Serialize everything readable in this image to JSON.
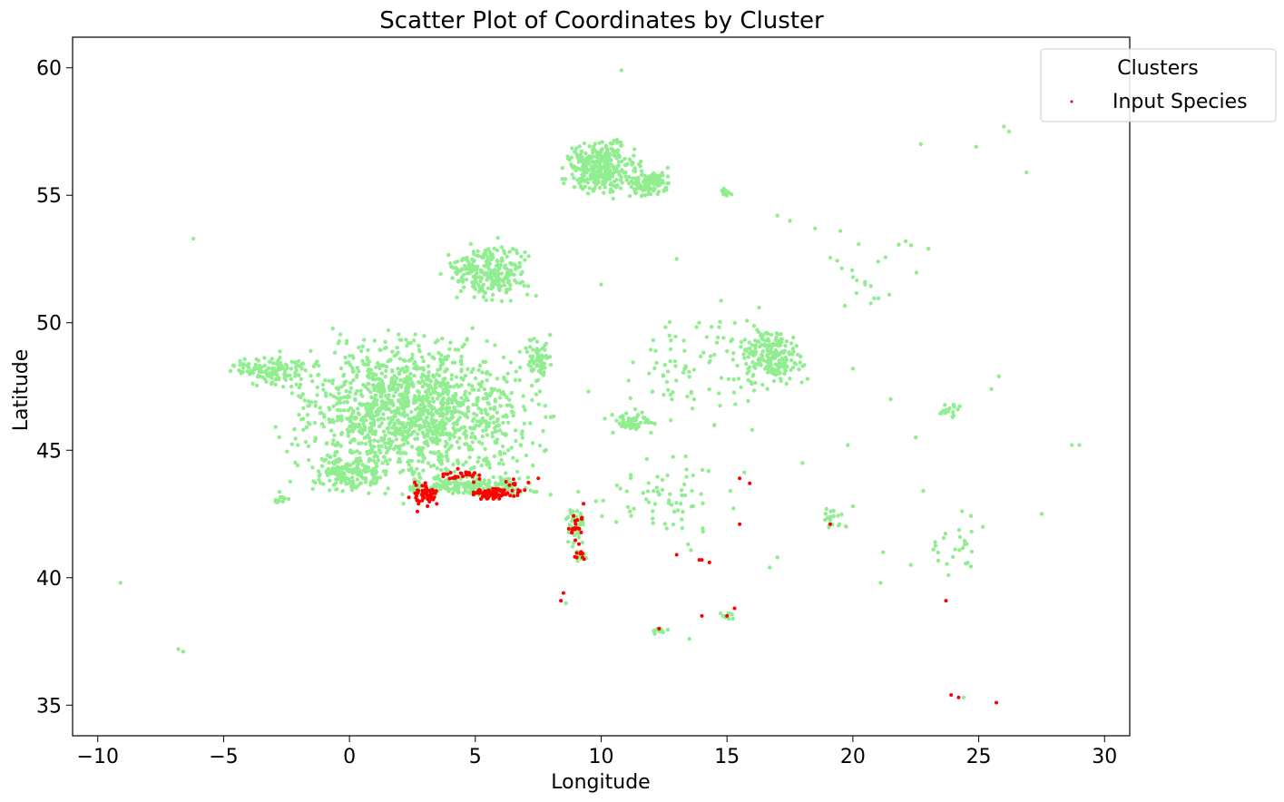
{
  "chart_data": {
    "type": "scatter",
    "title": "Scatter Plot of Coordinates by Cluster",
    "xlabel": "Longitude",
    "ylabel": "Latitude",
    "xlim": [
      -11,
      31
    ],
    "ylim": [
      33.8,
      61.2
    ],
    "xticks": [
      -10,
      -5,
      0,
      5,
      10,
      15,
      20,
      25,
      30
    ],
    "xtick_labels": [
      "−10",
      "−5",
      "0",
      "5",
      "10",
      "15",
      "20",
      "25",
      "30"
    ],
    "yticks": [
      35,
      40,
      45,
      50,
      55,
      60
    ],
    "ytick_labels": [
      "35",
      "40",
      "45",
      "50",
      "55",
      "60"
    ],
    "grid": false,
    "legend": {
      "title": "Clusters",
      "placement": "top-right",
      "entries": [
        "Input Species"
      ]
    },
    "colors": {
      "background_points": "#90ee90",
      "input_species": "#ff0000"
    },
    "series": [
      {
        "role": "background",
        "color": "#90ee90",
        "regions": [
          {
            "lon": 2.5,
            "lat": 46.5,
            "spread_lon": 3.8,
            "spread_lat": 2.3,
            "n": 1400
          },
          {
            "lon": -3.0,
            "lat": 48.1,
            "spread_lon": 1.3,
            "spread_lat": 0.45,
            "n": 120
          },
          {
            "lon": 0.0,
            "lat": 44.1,
            "spread_lon": 1.2,
            "spread_lat": 0.6,
            "n": 150
          },
          {
            "lon": 4.8,
            "lat": 43.6,
            "spread_lon": 2.2,
            "spread_lat": 0.35,
            "n": 200
          },
          {
            "lon": 5.5,
            "lat": 52.0,
            "spread_lon": 1.3,
            "spread_lat": 0.9,
            "n": 260
          },
          {
            "lon": 7.5,
            "lat": 48.6,
            "spread_lon": 0.4,
            "spread_lat": 0.7,
            "n": 60
          },
          {
            "lon": 10.0,
            "lat": 56.1,
            "spread_lon": 1.1,
            "spread_lat": 0.9,
            "n": 320
          },
          {
            "lon": 11.9,
            "lat": 55.5,
            "spread_lon": 0.8,
            "spread_lat": 0.45,
            "n": 120
          },
          {
            "lon": 15.0,
            "lat": 55.1,
            "spread_lon": 0.2,
            "spread_lat": 0.12,
            "n": 15
          },
          {
            "lon": 16.8,
            "lat": 48.7,
            "spread_lon": 1.0,
            "spread_lat": 0.9,
            "n": 200
          },
          {
            "lon": 14.0,
            "lat": 48.5,
            "spread_lon": 2.5,
            "spread_lat": 2.0,
            "n": 90
          },
          {
            "lon": 11.2,
            "lat": 46.1,
            "spread_lon": 0.7,
            "spread_lat": 0.35,
            "n": 60
          },
          {
            "lon": 9.0,
            "lat": 42.0,
            "spread_lon": 0.35,
            "spread_lat": 0.6,
            "n": 50
          },
          {
            "lon": 9.2,
            "lat": 40.9,
            "spread_lon": 0.25,
            "spread_lat": 0.2,
            "n": 15
          },
          {
            "lon": 12.5,
            "lat": 43.0,
            "spread_lon": 2.5,
            "spread_lat": 1.3,
            "n": 70
          },
          {
            "lon": 19.2,
            "lat": 42.4,
            "spread_lon": 0.4,
            "spread_lat": 0.4,
            "n": 20
          },
          {
            "lon": 23.9,
            "lat": 46.6,
            "spread_lon": 0.5,
            "spread_lat": 0.3,
            "n": 20
          },
          {
            "lon": 24.0,
            "lat": 41.4,
            "spread_lon": 1.0,
            "spread_lat": 1.0,
            "n": 25
          },
          {
            "lon": 20.5,
            "lat": 51.8,
            "spread_lon": 2.0,
            "spread_lat": 1.5,
            "n": 20
          },
          {
            "lon": -2.8,
            "lat": 43.1,
            "spread_lon": 0.3,
            "spread_lat": 0.2,
            "n": 12
          },
          {
            "lon": 12.3,
            "lat": 37.9,
            "spread_lon": 0.4,
            "spread_lat": 0.15,
            "n": 12
          },
          {
            "lon": 15.0,
            "lat": 38.5,
            "spread_lon": 0.3,
            "spread_lat": 0.15,
            "n": 8
          }
        ],
        "points": [
          {
            "lon": 10.8,
            "lat": 59.9
          },
          {
            "lon": -6.2,
            "lat": 53.3
          },
          {
            "lon": -9.1,
            "lat": 39.8
          },
          {
            "lon": -6.8,
            "lat": 37.2
          },
          {
            "lon": -6.6,
            "lat": 37.1
          },
          {
            "lon": 26.0,
            "lat": 57.7
          },
          {
            "lon": 26.2,
            "lat": 57.5
          },
          {
            "lon": 24.9,
            "lat": 56.9
          },
          {
            "lon": 22.7,
            "lat": 57.0
          },
          {
            "lon": 26.9,
            "lat": 55.9
          },
          {
            "lon": 17.0,
            "lat": 54.2
          },
          {
            "lon": 17.5,
            "lat": 54.0
          },
          {
            "lon": 18.5,
            "lat": 53.7
          },
          {
            "lon": 19.5,
            "lat": 53.6
          },
          {
            "lon": 22.1,
            "lat": 53.2
          },
          {
            "lon": 23.0,
            "lat": 52.9
          },
          {
            "lon": 13.0,
            "lat": 52.5
          },
          {
            "lon": 10.0,
            "lat": 51.5
          },
          {
            "lon": 21.0,
            "lat": 52.4
          },
          {
            "lon": 25.8,
            "lat": 47.9
          },
          {
            "lon": 25.5,
            "lat": 47.4
          },
          {
            "lon": 28.7,
            "lat": 45.2
          },
          {
            "lon": 29.0,
            "lat": 45.2
          },
          {
            "lon": 27.5,
            "lat": 42.5
          },
          {
            "lon": 20.0,
            "lat": 42.8
          },
          {
            "lon": 21.1,
            "lat": 39.8
          },
          {
            "lon": 21.2,
            "lat": 41.0
          },
          {
            "lon": 22.3,
            "lat": 40.5
          },
          {
            "lon": 23.8,
            "lat": 40.1
          },
          {
            "lon": 24.4,
            "lat": 35.3
          },
          {
            "lon": 13.5,
            "lat": 37.6
          },
          {
            "lon": 8.6,
            "lat": 39.0
          },
          {
            "lon": 17.0,
            "lat": 40.8
          },
          {
            "lon": 16.7,
            "lat": 40.4
          },
          {
            "lon": 18.0,
            "lat": 44.5
          },
          {
            "lon": 19.8,
            "lat": 45.2
          },
          {
            "lon": 16.0,
            "lat": 45.8
          },
          {
            "lon": 14.5,
            "lat": 46.0
          },
          {
            "lon": 22.5,
            "lat": 45.5
          },
          {
            "lon": 21.5,
            "lat": 47.0
          },
          {
            "lon": 20.0,
            "lat": 48.2
          },
          {
            "lon": 18.2,
            "lat": 47.8
          },
          {
            "lon": 22.8,
            "lat": 43.4
          },
          {
            "lon": 8.0,
            "lat": 46.3
          },
          {
            "lon": 7.8,
            "lat": 46.3
          },
          {
            "lon": 9.5,
            "lat": 47.3
          },
          {
            "lon": 6.5,
            "lat": 44.7
          },
          {
            "lon": 6.8,
            "lat": 45.2
          }
        ]
      },
      {
        "role": "species",
        "name": "Input Species",
        "color": "#ff0000",
        "regions": [
          {
            "lon": 3.0,
            "lat": 43.3,
            "spread_lon": 0.45,
            "spread_lat": 0.35,
            "n": 60
          },
          {
            "lon": 5.6,
            "lat": 43.3,
            "spread_lon": 0.6,
            "spread_lat": 0.2,
            "n": 70
          },
          {
            "lon": 4.5,
            "lat": 44.0,
            "spread_lon": 0.8,
            "spread_lat": 0.25,
            "n": 25
          },
          {
            "lon": 6.6,
            "lat": 43.5,
            "spread_lon": 0.6,
            "spread_lat": 0.35,
            "n": 20
          },
          {
            "lon": 9.0,
            "lat": 42.0,
            "spread_lon": 0.3,
            "spread_lat": 0.5,
            "n": 20
          },
          {
            "lon": 9.2,
            "lat": 40.9,
            "spread_lon": 0.2,
            "spread_lat": 0.15,
            "n": 8
          }
        ],
        "points": [
          {
            "lon": 7.5,
            "lat": 43.9
          },
          {
            "lon": 2.7,
            "lat": 42.6
          },
          {
            "lon": 9.3,
            "lat": 42.9
          },
          {
            "lon": 8.5,
            "lat": 39.4
          },
          {
            "lon": 8.4,
            "lat": 39.1
          },
          {
            "lon": 13.0,
            "lat": 40.9
          },
          {
            "lon": 13.9,
            "lat": 40.7
          },
          {
            "lon": 14.0,
            "lat": 40.7
          },
          {
            "lon": 14.3,
            "lat": 40.6
          },
          {
            "lon": 14.0,
            "lat": 38.5
          },
          {
            "lon": 15.0,
            "lat": 38.5
          },
          {
            "lon": 15.3,
            "lat": 38.8
          },
          {
            "lon": 15.5,
            "lat": 42.1
          },
          {
            "lon": 15.5,
            "lat": 43.9
          },
          {
            "lon": 15.9,
            "lat": 43.7
          },
          {
            "lon": 12.3,
            "lat": 38.0
          },
          {
            "lon": 19.1,
            "lat": 42.1
          },
          {
            "lon": 23.7,
            "lat": 39.1
          },
          {
            "lon": 23.9,
            "lat": 35.4
          },
          {
            "lon": 24.2,
            "lat": 35.3
          },
          {
            "lon": 25.7,
            "lat": 35.1
          }
        ]
      }
    ]
  }
}
